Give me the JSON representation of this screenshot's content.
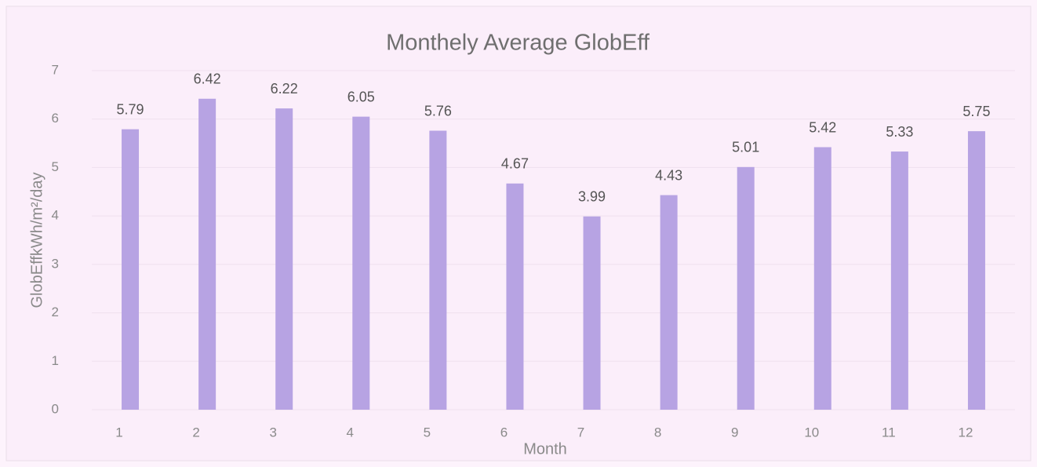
{
  "chart_data": {
    "type": "bar",
    "title": "Monthely Average  GlobEff",
    "x_label": "Month",
    "y_label": "GlobEffkWh/m²/day",
    "categories": [
      "1",
      "2",
      "3",
      "4",
      "5",
      "6",
      "7",
      "8",
      "9",
      "10",
      "11",
      "12"
    ],
    "values": [
      5.79,
      6.42,
      6.22,
      6.05,
      5.76,
      4.67,
      3.99,
      4.43,
      5.01,
      5.42,
      5.33,
      5.75
    ],
    "color": "#b7a3e3",
    "ylim": [
      0,
      7
    ],
    "yticks": [
      0,
      1,
      2,
      3,
      4,
      5,
      6,
      7
    ],
    "grid": true
  }
}
